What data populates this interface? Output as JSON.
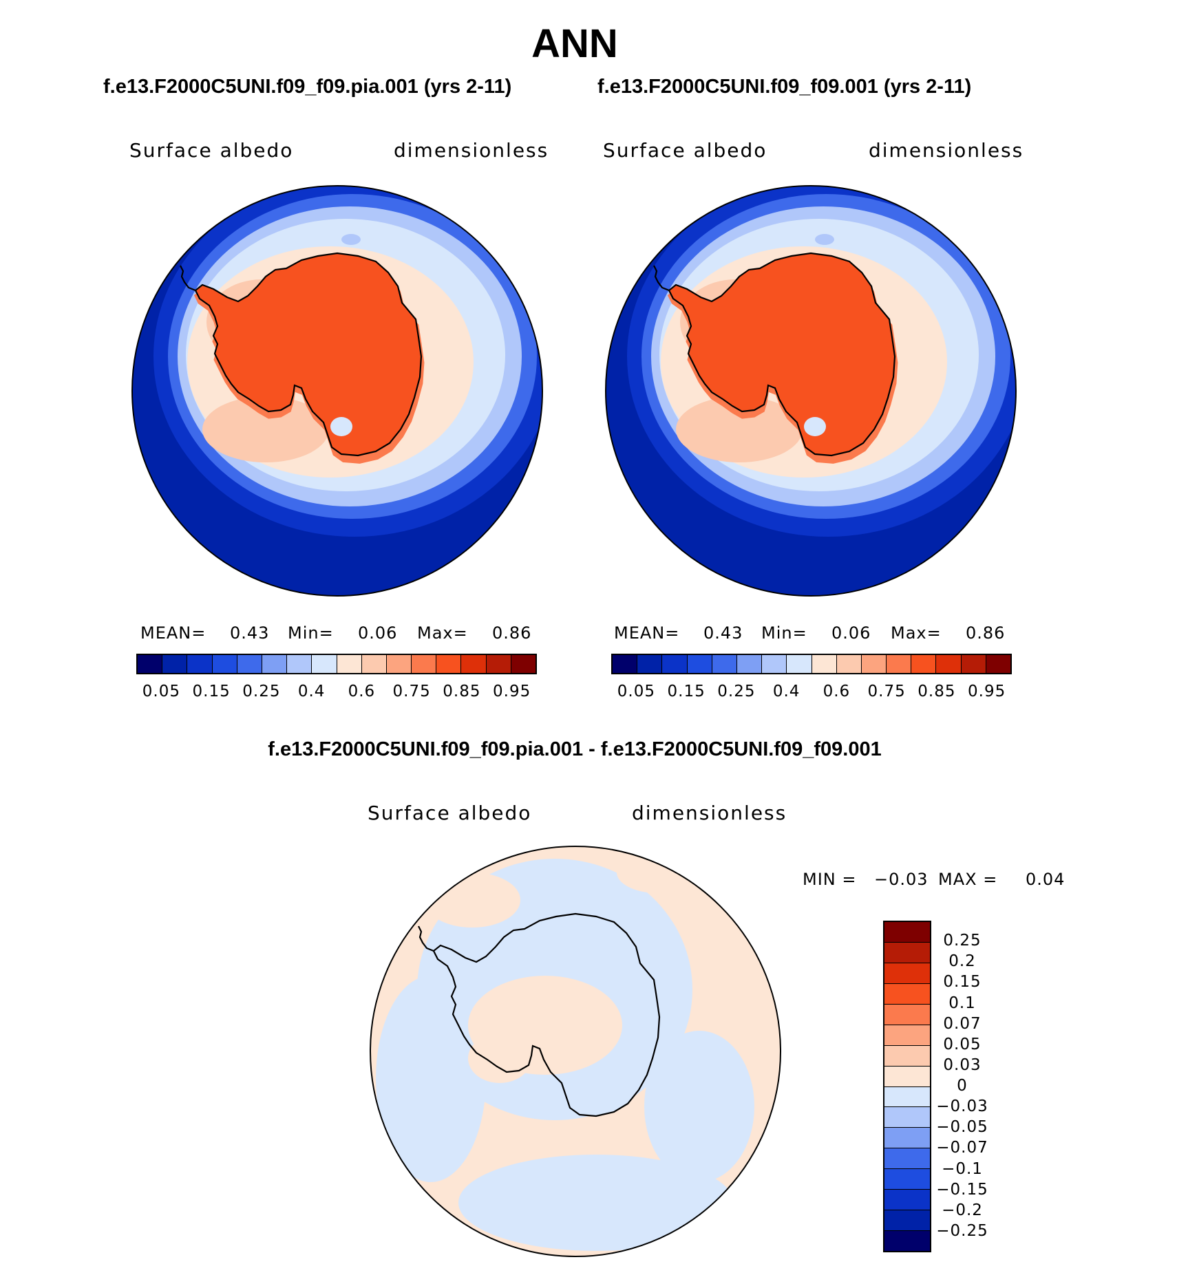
{
  "figure": {
    "title": "ANN",
    "panels": [
      {
        "case": "f.e13.F2000C5UNI.f09_f09.pia.001 (yrs 2-11)",
        "variable": "Surface albedo",
        "units": "dimensionless",
        "stats": {
          "mean_label": "MEAN=",
          "mean": "0.43",
          "min_label": "Min=",
          "min": "0.06",
          "max_label": "Max=",
          "max": "0.86"
        }
      },
      {
        "case": "f.e13.F2000C5UNI.f09_f09.001 (yrs 2-11)",
        "variable": "Surface albedo",
        "units": "dimensionless",
        "stats": {
          "mean_label": "MEAN=",
          "mean": "0.43",
          "min_label": "Min=",
          "min": "0.06",
          "max_label": "Max=",
          "max": "0.86"
        }
      }
    ],
    "difference": {
      "case": "f.e13.F2000C5UNI.f09_f09.pia.001 - f.e13.F2000C5UNI.f09_f09.001",
      "variable": "Surface albedo",
      "units": "dimensionless",
      "min_label": "MIN =",
      "min": "−0.03",
      "max_label": "MAX =",
      "max": "0.04"
    }
  },
  "chart_data": [
    {
      "type": "heatmap",
      "projection": "south-polar stereographic",
      "title": "f.e13.F2000C5UNI.f09_f09.pia.001 (yrs 2-11)",
      "variable": "Surface albedo",
      "units": "dimensionless",
      "mean": 0.43,
      "min": 0.06,
      "max": 0.86,
      "levels": [
        0.05,
        0.1,
        0.15,
        0.2,
        0.25,
        0.3,
        0.4,
        0.5,
        0.6,
        0.7,
        0.75,
        0.8,
        0.85,
        0.9,
        0.95
      ],
      "tick_labels": [
        "0.05",
        "0.15",
        "0.25",
        "0.4",
        "0.6",
        "0.75",
        "0.85",
        "0.95"
      ],
      "colors": [
        "#00006b",
        "#0022a8",
        "#0b33c8",
        "#1e4de0",
        "#3e6aeb",
        "#7e9ff4",
        "#b0c7fa",
        "#d7e7fc",
        "#fde6d5",
        "#fccaaf",
        "#fca47f",
        "#fb7a4d",
        "#f7521f",
        "#de3009",
        "#b51c06",
        "#7e0000"
      ]
    },
    {
      "type": "heatmap",
      "projection": "south-polar stereographic",
      "title": "f.e13.F2000C5UNI.f09_f09.001 (yrs 2-11)",
      "variable": "Surface albedo",
      "units": "dimensionless",
      "mean": 0.43,
      "min": 0.06,
      "max": 0.86,
      "levels": [
        0.05,
        0.1,
        0.15,
        0.2,
        0.25,
        0.3,
        0.4,
        0.5,
        0.6,
        0.7,
        0.75,
        0.8,
        0.85,
        0.9,
        0.95
      ],
      "tick_labels": [
        "0.05",
        "0.15",
        "0.25",
        "0.4",
        "0.6",
        "0.75",
        "0.85",
        "0.95"
      ],
      "colors": [
        "#00006b",
        "#0022a8",
        "#0b33c8",
        "#1e4de0",
        "#3e6aeb",
        "#7e9ff4",
        "#b0c7fa",
        "#d7e7fc",
        "#fde6d5",
        "#fccaaf",
        "#fca47f",
        "#fb7a4d",
        "#f7521f",
        "#de3009",
        "#b51c06",
        "#7e0000"
      ]
    },
    {
      "type": "heatmap",
      "projection": "south-polar stereographic",
      "title": "f.e13.F2000C5UNI.f09_f09.pia.001 - f.e13.F2000C5UNI.f09_f09.001",
      "variable": "Surface albedo",
      "units": "dimensionless",
      "min": -0.03,
      "max": 0.04,
      "levels": [
        -0.25,
        -0.2,
        -0.15,
        -0.1,
        -0.07,
        -0.05,
        -0.03,
        0,
        0.03,
        0.05,
        0.07,
        0.1,
        0.15,
        0.2,
        0.25
      ],
      "tick_labels": [
        "0.25",
        "0.2",
        "0.15",
        "0.1",
        "0.07",
        "0.05",
        "0.03",
        "0",
        "−0.03",
        "−0.05",
        "−0.07",
        "−0.1",
        "−0.15",
        "−0.2",
        "−0.25"
      ],
      "colors": [
        "#7e0000",
        "#b51c06",
        "#de3009",
        "#f7521f",
        "#fb7a4d",
        "#fca47f",
        "#fccaaf",
        "#fde6d5",
        "#d7e7fc",
        "#b0c7fa",
        "#7e9ff4",
        "#3e6aeb",
        "#1e4de0",
        "#0b33c8",
        "#0022a8",
        "#00006b"
      ]
    }
  ]
}
